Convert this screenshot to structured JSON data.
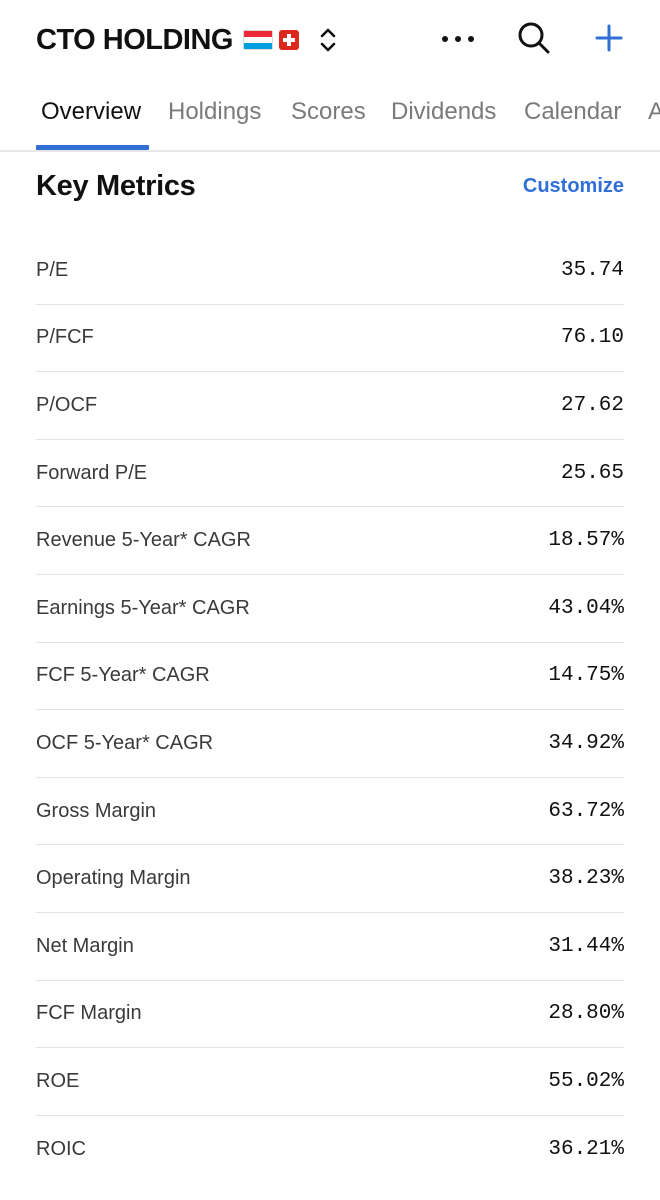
{
  "header": {
    "title": "CTO HOLDING",
    "flags": [
      "luxembourg-flag",
      "switzerland-flag"
    ],
    "icons": {
      "switch": "chevron-up-down-icon",
      "more": "more-horizontal-icon",
      "search": "search-icon",
      "add": "plus-icon"
    },
    "accent_color": "#2f6fd6"
  },
  "tabs": [
    {
      "label": "Overview",
      "active": true
    },
    {
      "label": "Holdings",
      "active": false
    },
    {
      "label": "Scores",
      "active": false
    },
    {
      "label": "Dividends",
      "active": false
    },
    {
      "label": "Calendar",
      "active": false
    },
    {
      "label": "A",
      "active": false
    }
  ],
  "section": {
    "title": "Key Metrics",
    "action_label": "Customize"
  },
  "metrics": [
    {
      "label": "P/E",
      "value": "35.74"
    },
    {
      "label": "P/FCF",
      "value": "76.10"
    },
    {
      "label": "P/OCF",
      "value": "27.62"
    },
    {
      "label": "Forward P/E",
      "value": "25.65"
    },
    {
      "label": "Revenue 5-Year* CAGR",
      "value": "18.57%"
    },
    {
      "label": "Earnings 5-Year* CAGR",
      "value": "43.04%"
    },
    {
      "label": "FCF 5-Year* CAGR",
      "value": "14.75%"
    },
    {
      "label": "OCF 5-Year* CAGR",
      "value": "34.92%"
    },
    {
      "label": "Gross Margin",
      "value": "63.72%"
    },
    {
      "label": "Operating Margin",
      "value": "38.23%"
    },
    {
      "label": "Net Margin",
      "value": "31.44%"
    },
    {
      "label": "FCF Margin",
      "value": "28.80%"
    },
    {
      "label": "ROE",
      "value": "55.02%"
    },
    {
      "label": "ROIC",
      "value": "36.21%"
    }
  ]
}
